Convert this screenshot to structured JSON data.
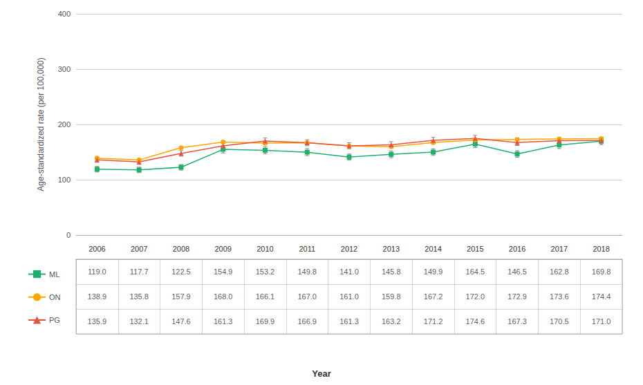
{
  "chart_data": {
    "type": "line",
    "ylabel": "Age-standardized rate (per 100,000)",
    "xlabel": "Year",
    "categories": [
      "2006",
      "2007",
      "2008",
      "2009",
      "2010",
      "2011",
      "2012",
      "2013",
      "2014",
      "2015",
      "2016",
      "2017",
      "2018"
    ],
    "series": [
      {
        "name": "ML",
        "color": "#1db06b",
        "marker": "square",
        "values": [
          119.0,
          117.7,
          122.5,
          154.9,
          153.2,
          149.8,
          141.0,
          145.8,
          149.9,
          164.5,
          146.5,
          162.8,
          169.8
        ],
        "value_labels": [
          "119.0",
          "117.7",
          "122.5",
          "154.9",
          "153.2",
          "149.8",
          "141.0",
          "145.8",
          "149.9",
          "164.5",
          "146.5",
          "162.8",
          "169.8"
        ],
        "errors": [
          5.0,
          5.0,
          5.0,
          6.5,
          6.5,
          6.5,
          5.5,
          6.0,
          6.0,
          6.5,
          6.0,
          6.5,
          6.5
        ]
      },
      {
        "name": "ON",
        "color": "#ffa500",
        "marker": "circle",
        "values": [
          138.9,
          135.8,
          157.9,
          168.0,
          166.1,
          167.0,
          161.0,
          159.8,
          167.2,
          172.0,
          172.9,
          173.6,
          174.4
        ],
        "value_labels": [
          "138.9",
          "135.8",
          "157.9",
          "168.0",
          "166.1",
          "167.0",
          "161.0",
          "159.8",
          "167.2",
          "172.0",
          "172.9",
          "173.6",
          "174.4"
        ],
        "errors": [
          2.0,
          2.0,
          2.5,
          2.5,
          2.5,
          2.5,
          2.5,
          2.5,
          2.5,
          2.5,
          2.5,
          2.5,
          2.5
        ]
      },
      {
        "name": "PG",
        "color": "#e8523a",
        "marker": "triangle",
        "values": [
          135.9,
          132.1,
          147.6,
          161.3,
          169.9,
          166.9,
          161.3,
          163.2,
          171.2,
          174.6,
          167.3,
          170.5,
          171.0
        ],
        "value_labels": [
          "135.9",
          "132.1",
          "147.6",
          "161.3",
          "169.9",
          "166.9",
          "161.3",
          "163.2",
          "171.2",
          "174.6",
          "167.3",
          "170.5",
          "171.0"
        ],
        "errors": [
          4.5,
          4.5,
          5.0,
          5.5,
          5.5,
          5.5,
          5.5,
          5.5,
          5.5,
          5.5,
          5.5,
          5.5,
          5.5
        ]
      }
    ],
    "ylim": [
      0,
      400
    ],
    "yticks": [
      0,
      100,
      200,
      300,
      400
    ],
    "grid": true,
    "legend": "bottom",
    "data_labels": true
  }
}
